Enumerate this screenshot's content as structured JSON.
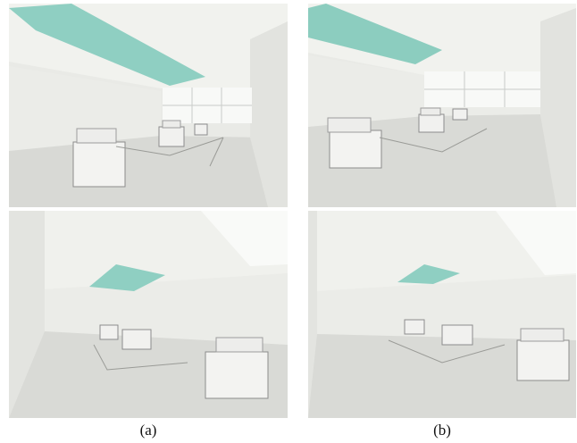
{
  "captions": {
    "a": "(a)",
    "b": "(b)"
  },
  "panels": [
    {
      "column": "a",
      "row": "top",
      "view": "room-with-skylight-and-window"
    },
    {
      "column": "b",
      "row": "top",
      "view": "room-with-skylight-and-window"
    },
    {
      "column": "a",
      "row": "bottom",
      "view": "room-with-boxes"
    },
    {
      "column": "b",
      "row": "bottom",
      "view": "room-with-boxes"
    }
  ],
  "colors": {
    "wall": "#ecede9",
    "floor": "#dadbd7",
    "ceiling": "#f1f2ee",
    "skylight": "#8ccdbf",
    "window": "#f7f8f6",
    "box": "#f3f3f1"
  }
}
